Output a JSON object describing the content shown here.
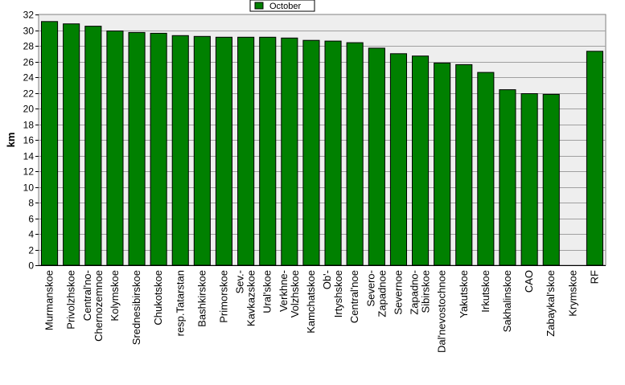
{
  "chart_data": {
    "type": "bar",
    "ylabel": "km",
    "ylim": [
      0,
      32
    ],
    "ytick_step": 2,
    "grid": true,
    "legend_position": "top-center",
    "series": [
      {
        "name": "October",
        "color": "#008000",
        "values": [
          31.1,
          30.8,
          30.5,
          29.9,
          29.7,
          29.6,
          29.3,
          29.2,
          29.1,
          29.1,
          29.1,
          29.0,
          28.7,
          28.6,
          28.4,
          27.7,
          27.0,
          26.7,
          25.8,
          25.6,
          24.6,
          22.4,
          21.9,
          21.8,
          null,
          27.3
        ]
      }
    ],
    "categories": [
      [
        "Murmanskoe"
      ],
      [
        "Privolzhskoe"
      ],
      [
        "Central'no-",
        "Chernozemnoe"
      ],
      [
        "Kolymskoe"
      ],
      [
        "Srednesibirskoe"
      ],
      [
        "Chukotskoe"
      ],
      [
        "resp.Tatarstan"
      ],
      [
        "Bashkirskoe"
      ],
      [
        "Primorskoe"
      ],
      [
        "Sev.-",
        "Kavkazskoe"
      ],
      [
        "Ural'skoe"
      ],
      [
        "Verkhne-",
        "Volzhskoe"
      ],
      [
        "Kamchatskoe"
      ],
      [
        "Ob'-",
        "Irtyshskoe"
      ],
      [
        "Central'noe"
      ],
      [
        "Severo-",
        "Zapadnoe"
      ],
      [
        "Severnoe"
      ],
      [
        "Zapadno-",
        "Sibirskoe"
      ],
      [
        "Dal'nevostochnoe"
      ],
      [
        "Yakutskoe"
      ],
      [
        "Irkutskoe"
      ],
      [
        "Sakhalinskoe"
      ],
      [
        "CAO"
      ],
      [
        "Zabaykal'skoe"
      ],
      [
        "Krymskoe"
      ],
      [
        "RF"
      ]
    ]
  }
}
